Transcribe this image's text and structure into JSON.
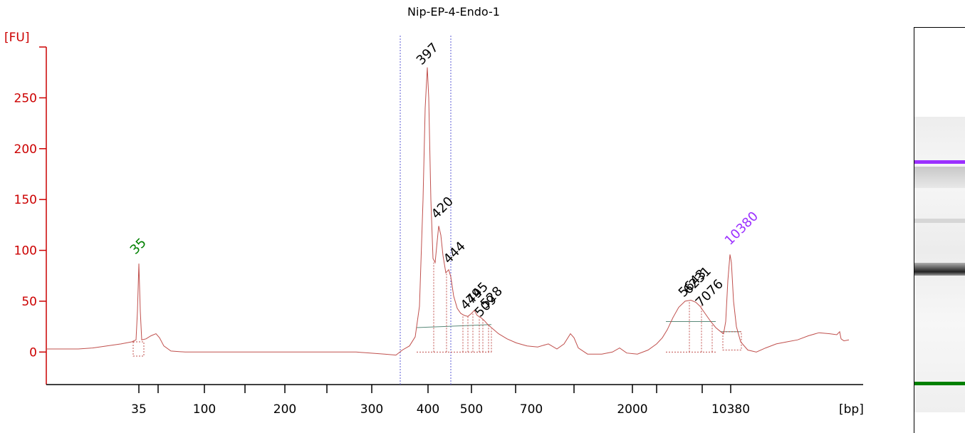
{
  "chart_data": {
    "type": "line",
    "title": "Nip-EP-4-Endo-1",
    "ylabel": "[FU]",
    "xlabel": "[bp]",
    "ylim": [
      -32,
      300
    ],
    "yticks": [
      0,
      50,
      100,
      150,
      200,
      250
    ],
    "xtick_labels": [
      "35",
      "100",
      "200",
      "300",
      "400",
      "500",
      "700",
      "2000",
      "10380"
    ],
    "x_scale": "nonlinear (migration time)",
    "line_color": "#c0504d",
    "axis_color": "#cc0000",
    "series": [
      {
        "peaks": [
          {
            "label": "35",
            "fu": 87,
            "color": "#008000"
          },
          {
            "label": "397",
            "fu": 280,
            "color": "#000000"
          },
          {
            "label": "420",
            "fu": 124,
            "color": "#000000"
          },
          {
            "label": "444",
            "fu": 81,
            "color": "#000000"
          },
          {
            "label": "474",
            "fu": 38,
            "color": "#000000"
          },
          {
            "label": "495",
            "fu": 41,
            "color": "#000000"
          },
          {
            "label": "509",
            "fu": 34,
            "color": "#000000"
          },
          {
            "label": "528",
            "fu": 30,
            "color": "#000000"
          },
          {
            "label": "5643",
            "fu": 50,
            "color": "#000000"
          },
          {
            "label": "6231",
            "fu": 50,
            "color": "#000000"
          },
          {
            "label": "7076",
            "fu": 43,
            "color": "#000000"
          },
          {
            "label": "10380",
            "fu": 96,
            "color": "#9b30ff"
          }
        ]
      }
    ],
    "grid": false
  },
  "gel": {
    "marker_colors": {
      "upper": "#9b30ff",
      "lower": "#008000",
      "sample": "#333333"
    }
  }
}
